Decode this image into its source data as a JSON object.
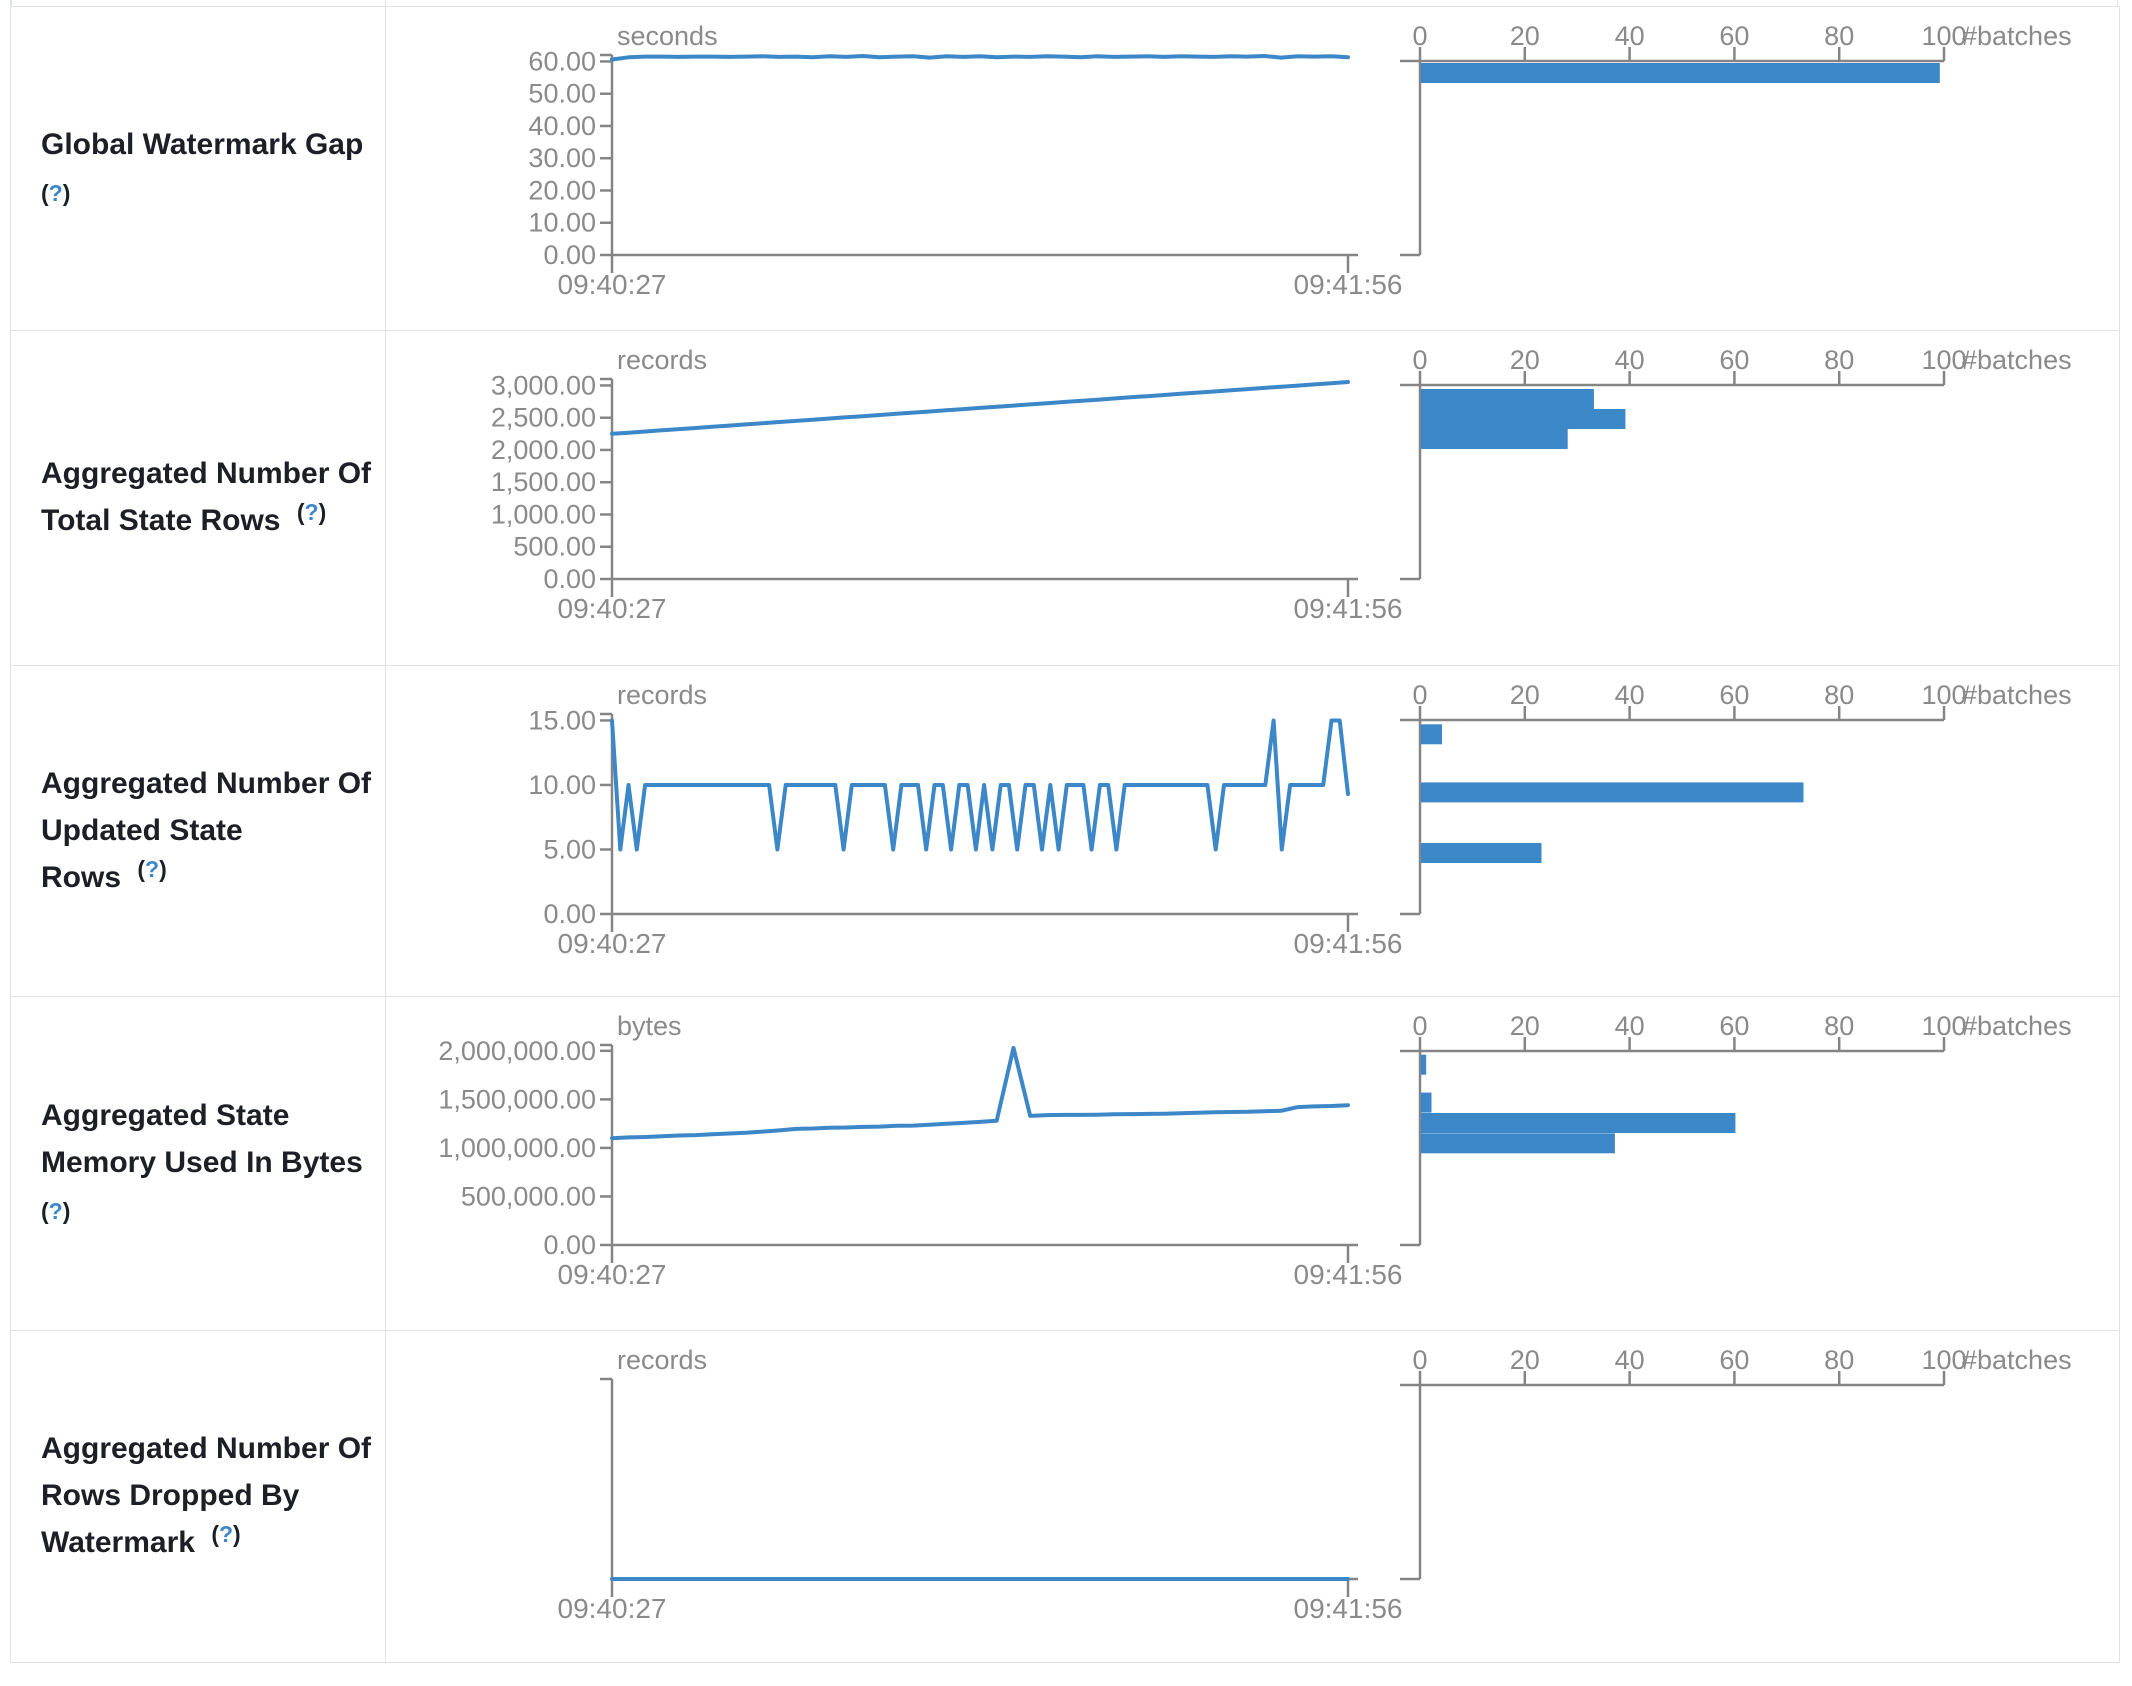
{
  "colors": {
    "accent_blue": "#3c87c8",
    "axis_gray": "#858585",
    "text_gray": "#8a8a8a",
    "border_gray": "#dee2e6",
    "label_dark": "#1c1f26"
  },
  "timeline": {
    "start": "09:40:27",
    "end": "09:41:56"
  },
  "hist_axis": {
    "ticks": [
      0,
      20,
      40,
      60,
      80,
      100
    ],
    "label": "#batches"
  },
  "rows": [
    {
      "label_lines": [
        "Global Watermark Gap"
      ],
      "help": "(?)",
      "help_q": "?",
      "help_inline": false,
      "unit": "seconds",
      "ylim": 62,
      "yticks": [
        {
          "v": 0,
          "label": "0.00"
        },
        {
          "v": 10,
          "label": "10.00"
        },
        {
          "v": 20,
          "label": "20.00"
        },
        {
          "v": 30,
          "label": "30.00"
        },
        {
          "v": 40,
          "label": "40.00"
        },
        {
          "v": 50,
          "label": "50.00"
        },
        {
          "v": 60,
          "label": "60.00"
        }
      ],
      "values": [
        60.6,
        61.3,
        61.5,
        61.5,
        61.4,
        61.5,
        61.5,
        61.4,
        61.5,
        61.6,
        61.4,
        61.5,
        61.3,
        61.6,
        61.4,
        61.7,
        61.3,
        61.5,
        61.6,
        61.2,
        61.6,
        61.4,
        61.6,
        61.3,
        61.5,
        61.4,
        61.6,
        61.5,
        61.3,
        61.6,
        61.4,
        61.5,
        61.6,
        61.4,
        61.6,
        61.5,
        61.4,
        61.6,
        61.5,
        61.7,
        61.2,
        61.6,
        61.5,
        61.6,
        61.3
      ],
      "bins": [
        {
          "v": 61.8,
          "count": 99
        }
      ]
    },
    {
      "label_lines": [
        "Aggregated Number Of",
        "Total State Rows"
      ],
      "help": "(?)",
      "help_q": "?",
      "help_inline": true,
      "unit": "records",
      "ylim": 3100,
      "yticks": [
        {
          "v": 0,
          "label": "0.00"
        },
        {
          "v": 500,
          "label": "500.00"
        },
        {
          "v": 1000,
          "label": "1,000.00"
        },
        {
          "v": 1500,
          "label": "1,500.00"
        },
        {
          "v": 2000,
          "label": "2,000.00"
        },
        {
          "v": 2500,
          "label": "2,500.00"
        },
        {
          "v": 3000,
          "label": "3,000.00"
        }
      ],
      "values": [
        2250,
        2268,
        2287,
        2305,
        2323,
        2341,
        2360,
        2378,
        2396,
        2414,
        2433,
        2451,
        2469,
        2487,
        2506,
        2524,
        2542,
        2560,
        2579,
        2597,
        2615,
        2633,
        2652,
        2670,
        2688,
        2706,
        2725,
        2743,
        2761,
        2779,
        2798,
        2816,
        2834,
        2852,
        2871,
        2889,
        2907,
        2925,
        2944,
        2962,
        2980,
        2998,
        3017,
        3035,
        3053
      ],
      "bins": [
        {
          "v": 2945,
          "count": 33
        },
        {
          "v": 2635,
          "count": 39
        },
        {
          "v": 2325,
          "count": 28
        }
      ]
    },
    {
      "label_lines": [
        "Aggregated Number Of",
        "Updated State Rows"
      ],
      "help": "(?)",
      "help_q": "?",
      "help_inline": true,
      "unit": "records",
      "ylim": 15.5,
      "yticks": [
        {
          "v": 0,
          "label": "0.00"
        },
        {
          "v": 5,
          "label": "5.00"
        },
        {
          "v": 10,
          "label": "10.00"
        },
        {
          "v": 15,
          "label": "15.00"
        }
      ],
      "values": [
        15,
        5,
        10,
        5,
        10,
        10,
        10,
        10,
        10,
        10,
        10,
        10,
        10,
        10,
        10,
        10,
        10,
        10,
        10,
        10,
        5,
        10,
        10,
        10,
        10,
        10,
        10,
        10,
        5,
        10,
        10,
        10,
        10,
        10,
        5,
        10,
        10,
        10,
        5,
        10,
        10,
        5,
        10,
        10,
        5,
        10,
        5,
        10,
        10,
        5,
        10,
        10,
        5,
        10,
        5,
        10,
        10,
        10,
        5,
        10,
        10,
        5,
        10,
        10,
        10,
        10,
        10,
        10,
        10,
        10,
        10,
        10,
        10,
        5,
        10,
        10,
        10,
        10,
        10,
        10,
        15,
        5,
        10,
        10,
        10,
        10,
        10,
        15,
        15,
        9.3
      ],
      "bins": [
        {
          "v": 14.7,
          "count": 4
        },
        {
          "v": 10.2,
          "count": 73
        },
        {
          "v": 5.5,
          "count": 23
        }
      ]
    },
    {
      "label_lines": [
        "Aggregated State",
        "Memory Used In Bytes"
      ],
      "help": "(?)",
      "help_q": "?",
      "help_inline": false,
      "unit": "bytes",
      "ylim": 2060000,
      "yticks": [
        {
          "v": 0,
          "label": "0.00"
        },
        {
          "v": 500000,
          "label": "500,000.00"
        },
        {
          "v": 1000000,
          "label": "1,000,000.00"
        },
        {
          "v": 1500000,
          "label": "1,500,000.00"
        },
        {
          "v": 2000000,
          "label": "2,000,000.00"
        }
      ],
      "values": [
        1100000,
        1108000,
        1112000,
        1120000,
        1128000,
        1132000,
        1140000,
        1148000,
        1156000,
        1168000,
        1180000,
        1196000,
        1200000,
        1208000,
        1210000,
        1216000,
        1220000,
        1228000,
        1230000,
        1238000,
        1248000,
        1258000,
        1268000,
        1280000,
        2030000,
        1330000,
        1338000,
        1340000,
        1340000,
        1342000,
        1346000,
        1348000,
        1350000,
        1352000,
        1358000,
        1362000,
        1368000,
        1370000,
        1372000,
        1378000,
        1382000,
        1420000,
        1428000,
        1432000,
        1440000
      ],
      "bins": [
        {
          "v": 1960000,
          "count": 1
        },
        {
          "v": 1570000,
          "count": 2
        },
        {
          "v": 1360000,
          "count": 60
        },
        {
          "v": 1150000,
          "count": 37
        }
      ]
    },
    {
      "label_lines": [
        "Aggregated Number Of",
        "Rows Dropped By",
        "Watermark"
      ],
      "help": "(?)",
      "help_q": "?",
      "help_inline": true,
      "unit": "records",
      "ylim": 1,
      "yticks": [],
      "values": [
        0,
        0
      ],
      "bins": []
    }
  ],
  "chart_data": [
    {
      "type": "line",
      "title": "seconds",
      "x": [
        "09:40:27",
        "09:41:56"
      ],
      "ylim": [
        0,
        62
      ],
      "yticks": [
        0,
        10,
        20,
        30,
        40,
        50,
        60
      ],
      "series": [
        {
          "name": "Global Watermark Gap",
          "values": "flat line ~61.5 seconds across window"
        }
      ],
      "histogram": {
        "xlabel": "#batches",
        "xlim": [
          0,
          100
        ],
        "bars": [
          {
            "bin": "~61",
            "count": 99
          }
        ]
      }
    },
    {
      "type": "line",
      "title": "records",
      "x": [
        "09:40:27",
        "09:41:56"
      ],
      "ylim": [
        0,
        3100
      ],
      "yticks": [
        0,
        500,
        1000,
        1500,
        2000,
        2500,
        3000
      ],
      "series": [
        {
          "name": "Aggregated Number Of Total State Rows",
          "values": "linear ramp 2250 to ~3050"
        }
      ],
      "histogram": {
        "xlabel": "#batches",
        "xlim": [
          0,
          100
        ],
        "bars": [
          {
            "bin": "~2950",
            "count": 33
          },
          {
            "bin": "~2650",
            "count": 39
          },
          {
            "bin": "~2350",
            "count": 28
          }
        ]
      }
    },
    {
      "type": "line",
      "title": "records",
      "x": [
        "09:40:27",
        "09:41:56"
      ],
      "ylim": [
        0,
        15.5
      ],
      "yticks": [
        0,
        5,
        10,
        15
      ],
      "series": [
        {
          "name": "Aggregated Number Of Updated State Rows",
          "values": "mostly 10 with dips to 5, spikes to 15, ends ~9"
        }
      ],
      "histogram": {
        "xlabel": "#batches",
        "xlim": [
          0,
          100
        ],
        "bars": [
          {
            "bin": "15",
            "count": 4
          },
          {
            "bin": "10",
            "count": 73
          },
          {
            "bin": "5",
            "count": 23
          }
        ]
      }
    },
    {
      "type": "line",
      "title": "bytes",
      "x": [
        "09:40:27",
        "09:41:56"
      ],
      "ylim": [
        0,
        2060000
      ],
      "yticks": [
        0,
        500000,
        1000000,
        1500000,
        2000000
      ],
      "series": [
        {
          "name": "Aggregated State Memory Used In Bytes",
          "values": "ramp 1.10M to 1.44M with single spike ~2.03M at ~54% of window"
        }
      ],
      "histogram": {
        "xlabel": "#batches",
        "xlim": [
          0,
          100
        ],
        "bars": [
          {
            "bin": "~2.0M",
            "count": 1
          },
          {
            "bin": "~1.6M",
            "count": 2
          },
          {
            "bin": "~1.4M",
            "count": 60
          },
          {
            "bin": "~1.2M",
            "count": 37
          }
        ]
      }
    },
    {
      "type": "line",
      "title": "records",
      "x": [
        "09:40:27",
        "09:41:56"
      ],
      "ylim": [
        0,
        1
      ],
      "yticks": [],
      "series": [
        {
          "name": "Aggregated Number Of Rows Dropped By Watermark",
          "values": "flat at 0"
        }
      ],
      "histogram": {
        "xlabel": "#batches",
        "xlim": [
          0,
          100
        ],
        "bars": []
      }
    }
  ]
}
